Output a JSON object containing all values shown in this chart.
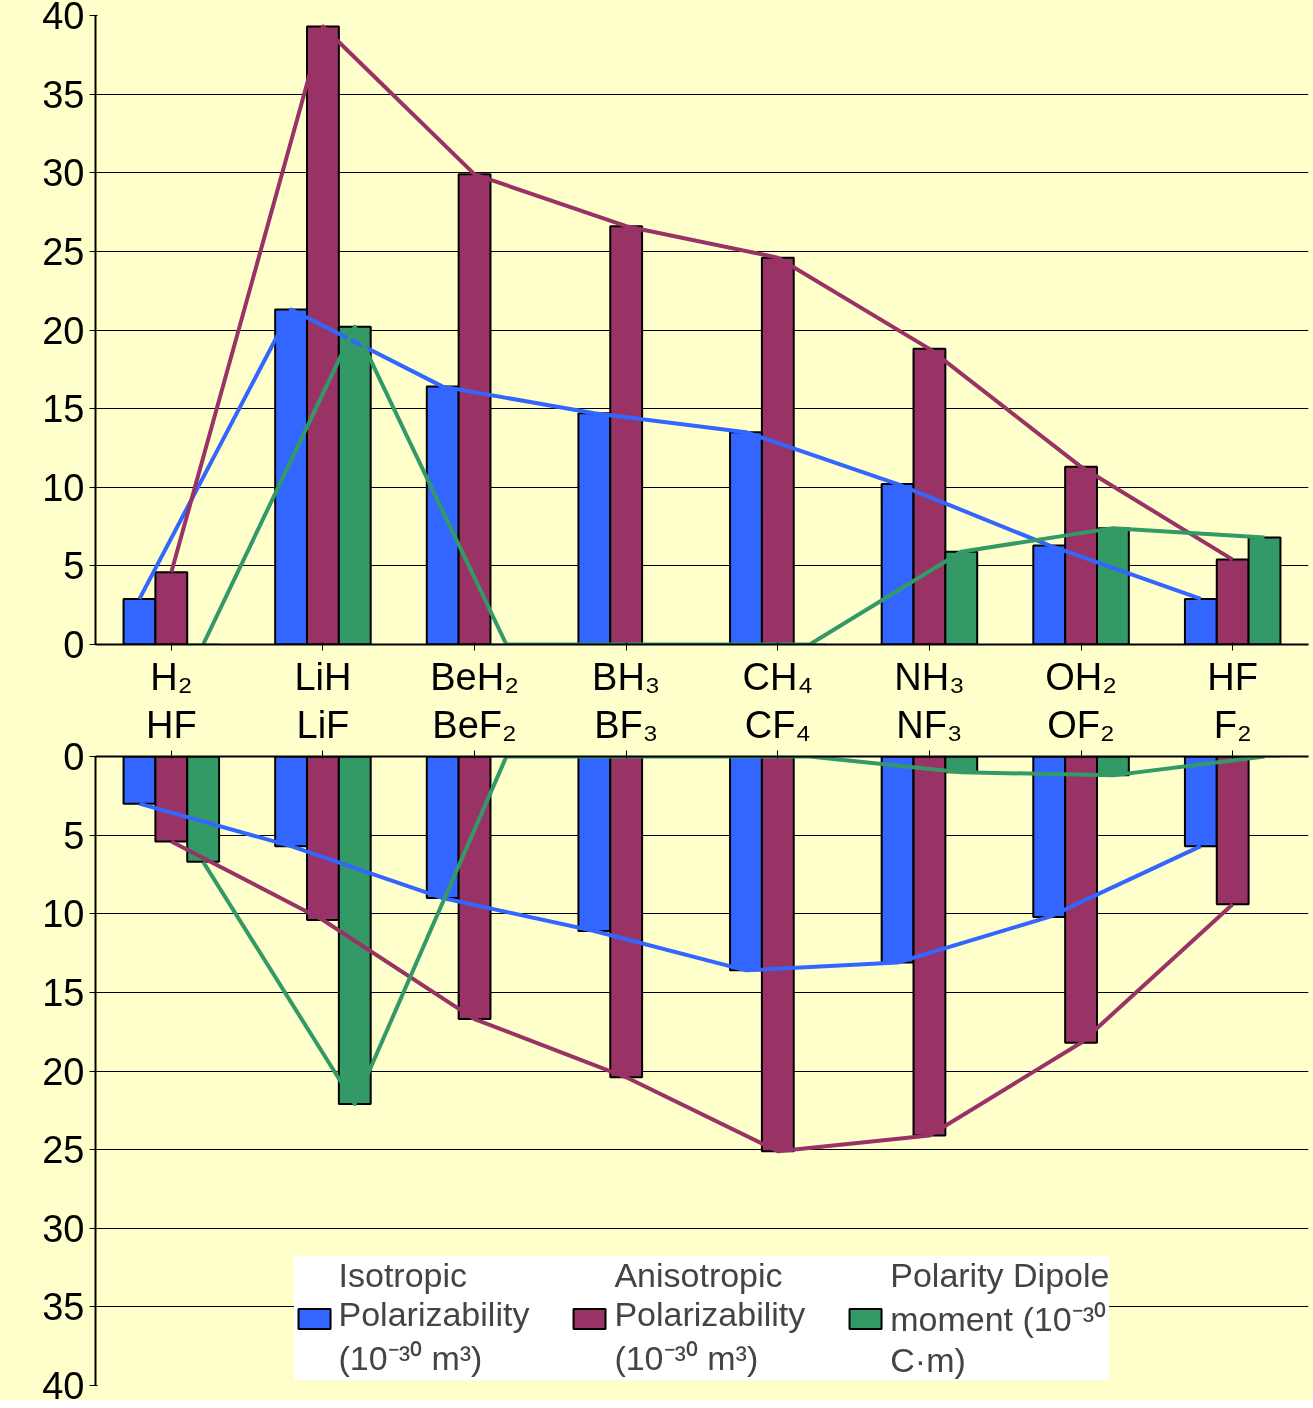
{
  "chart_data": [
    {
      "type": "bar",
      "categories": [
        "H₂",
        "LiH",
        "BeH₂",
        "BH₃",
        "CH₄",
        "NH₃",
        "OH₂",
        "HF"
      ],
      "ylim": [
        0,
        40
      ],
      "yticks": [
        0,
        5,
        10,
        15,
        20,
        25,
        30,
        35,
        40
      ],
      "grid": "y",
      "series": [
        {
          "color": "#3366ff",
          "values": [
            2.9,
            21.3,
            16.4,
            14.7,
            13.5,
            10.2,
            6.3,
            2.9
          ]
        },
        {
          "color": "#993366",
          "values": [
            4.6,
            39.3,
            29.9,
            26.6,
            24.6,
            18.8,
            11.3,
            5.4
          ]
        },
        {
          "color": "#339966",
          "values": [
            0,
            20.2,
            0,
            0,
            0,
            5.9,
            7.4,
            6.8
          ]
        },
        {
          "type": "line",
          "color": "#3366ff",
          "values": [
            2.9,
            21.3,
            16.4,
            14.7,
            13.5,
            10.2,
            6.3,
            2.9
          ]
        },
        {
          "type": "line",
          "color": "#993366",
          "values": [
            4.6,
            39.3,
            29.9,
            26.6,
            24.6,
            18.8,
            11.3,
            5.4
          ]
        },
        {
          "type": "line",
          "color": "#339966",
          "values": [
            0,
            20.2,
            0,
            0,
            0,
            5.9,
            7.4,
            6.8
          ]
        }
      ]
    },
    {
      "type": "bar",
      "categories": [
        "HF",
        "LiF",
        "BeF₂",
        "BF₃",
        "CF₄",
        "NF₃",
        "OF₂",
        "F₂"
      ],
      "ylim": [
        40,
        0
      ],
      "yticks": [
        0,
        5,
        10,
        15,
        20,
        25,
        30,
        35,
        40
      ],
      "grid": "y",
      "legend": "bottom",
      "series": [
        {
          "name": "Isotropic Polarizability (10⁻³⁰ m³)",
          "color": "#3366ff",
          "values": [
            3.0,
            5.7,
            9.0,
            11.1,
            13.6,
            13.1,
            10.2,
            5.7
          ]
        },
        {
          "name": "Anisotropic Polarizability (10⁻³⁰ m³)",
          "color": "#993366",
          "values": [
            5.4,
            10.4,
            16.7,
            20.4,
            25.1,
            24.1,
            18.2,
            9.4
          ]
        },
        {
          "name": "Polarity Dipole moment (10⁻³⁰ C·m)",
          "color": "#339966",
          "values": [
            6.7,
            22.1,
            0,
            0,
            0,
            1.0,
            1.2,
            0
          ]
        },
        {
          "type": "line",
          "color": "#3366ff",
          "values": [
            3.0,
            5.7,
            9.0,
            11.1,
            13.6,
            13.1,
            10.2,
            5.7
          ]
        },
        {
          "type": "line",
          "color": "#993366",
          "values": [
            5.4,
            10.4,
            16.7,
            20.4,
            25.1,
            24.1,
            18.2,
            9.4
          ]
        },
        {
          "type": "line",
          "color": "#339966",
          "values": [
            6.7,
            22.1,
            0,
            0,
            0,
            1.0,
            1.2,
            0
          ]
        }
      ]
    }
  ]
}
